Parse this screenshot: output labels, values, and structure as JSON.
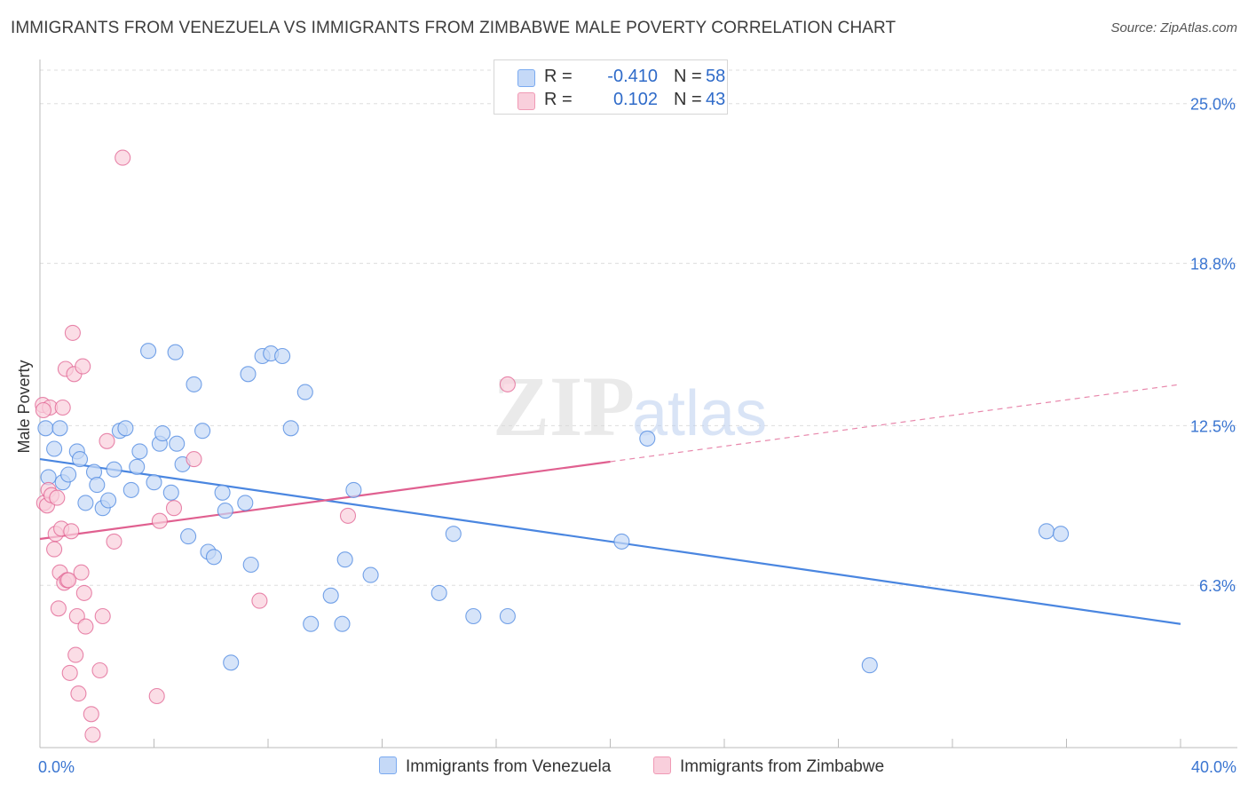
{
  "title": "IMMIGRANTS FROM VENEZUELA VS IMMIGRANTS FROM ZIMBABWE MALE POVERTY CORRELATION CHART",
  "source": "Source: ZipAtlas.com",
  "watermark": {
    "zip": "ZIP",
    "atlas": "atlas"
  },
  "legend": {
    "rows": [
      {
        "r_label": "R =",
        "r_value": "-0.410",
        "n_label": "N =",
        "n_value": "58",
        "color": "#7aaaf0",
        "fill": "#c5d9f7"
      },
      {
        "r_label": "R =",
        "r_value": "0.102",
        "n_label": "N =",
        "n_value": "43",
        "color": "#f09ab5",
        "fill": "#f9cfdc"
      }
    ]
  },
  "bottom_legend": [
    {
      "label": "Immigrants from Venezuela",
      "color": "#7aaaf0",
      "fill": "#c5d9f7"
    },
    {
      "label": "Immigrants from Zimbabwe",
      "color": "#f09ab5",
      "fill": "#f9cfdc"
    }
  ],
  "chart_data": {
    "type": "scatter",
    "title": "IMMIGRANTS FROM VENEZUELA VS IMMIGRANTS FROM ZIMBABWE MALE POVERTY CORRELATION CHART",
    "xlabel": "",
    "ylabel": "Male Poverty",
    "xlim": [
      0,
      40
    ],
    "ylim": [
      0,
      26.3
    ],
    "x_tick_labels": [
      {
        "value": 0,
        "label": "0.0%"
      },
      {
        "value": 40,
        "label": "40.0%"
      }
    ],
    "y_tick_labels": [
      {
        "value": 6.3,
        "label": "6.3%"
      },
      {
        "value": 12.5,
        "label": "12.5%"
      },
      {
        "value": 18.8,
        "label": "18.8%"
      },
      {
        "value": 25.0,
        "label": "25.0%"
      }
    ],
    "grid": "horizontal-dashed",
    "series": [
      {
        "name": "Immigrants from Venezuela",
        "color": "#4a86e0",
        "fill": "#c5d9f7",
        "trend": {
          "x0": 0,
          "y0": 11.2,
          "x1": 40,
          "y1": 4.8
        },
        "points": [
          [
            0.2,
            12.4
          ],
          [
            0.3,
            10.5
          ],
          [
            0.5,
            11.6
          ],
          [
            0.7,
            12.4
          ],
          [
            0.8,
            10.3
          ],
          [
            1.0,
            10.6
          ],
          [
            1.3,
            11.5
          ],
          [
            1.4,
            11.2
          ],
          [
            1.6,
            9.5
          ],
          [
            1.9,
            10.7
          ],
          [
            2.0,
            10.2
          ],
          [
            2.2,
            9.3
          ],
          [
            2.4,
            9.6
          ],
          [
            2.6,
            10.8
          ],
          [
            2.8,
            12.3
          ],
          [
            3.0,
            12.4
          ],
          [
            3.2,
            10.0
          ],
          [
            3.4,
            10.9
          ],
          [
            3.5,
            11.5
          ],
          [
            3.8,
            15.4
          ],
          [
            4.0,
            10.3
          ],
          [
            4.2,
            11.8
          ],
          [
            4.3,
            12.2
          ],
          [
            4.6,
            9.9
          ],
          [
            4.75,
            15.35
          ],
          [
            4.8,
            11.8
          ],
          [
            5.0,
            11.0
          ],
          [
            5.2,
            8.2
          ],
          [
            5.4,
            14.1
          ],
          [
            5.7,
            12.3
          ],
          [
            5.9,
            7.6
          ],
          [
            6.1,
            7.4
          ],
          [
            6.4,
            9.9
          ],
          [
            6.5,
            9.2
          ],
          [
            6.7,
            3.3
          ],
          [
            7.2,
            9.5
          ],
          [
            7.4,
            7.1
          ],
          [
            7.3,
            14.5
          ],
          [
            7.8,
            15.2
          ],
          [
            8.1,
            15.3
          ],
          [
            8.5,
            15.2
          ],
          [
            8.8,
            12.4
          ],
          [
            9.3,
            13.8
          ],
          [
            9.5,
            4.8
          ],
          [
            10.2,
            5.9
          ],
          [
            10.6,
            4.8
          ],
          [
            10.7,
            7.3
          ],
          [
            11.0,
            10.0
          ],
          [
            11.6,
            6.7
          ],
          [
            14.0,
            6.0
          ],
          [
            14.5,
            8.3
          ],
          [
            15.2,
            5.1
          ],
          [
            16.4,
            5.1
          ],
          [
            20.4,
            8.0
          ],
          [
            21.3,
            12.0
          ],
          [
            29.1,
            3.2
          ],
          [
            35.3,
            8.4
          ],
          [
            35.8,
            8.3
          ]
        ]
      },
      {
        "name": "Immigrants from Zimbabwe",
        "color": "#e06090",
        "fill": "#f9cfdc",
        "trend": {
          "x0": 0,
          "y0": 8.1,
          "x1": 20,
          "y1": 11.1
        },
        "trend_dashed": {
          "x0": 20,
          "y0": 11.1,
          "x1": 40,
          "y1": 14.1
        },
        "points": [
          [
            0.1,
            13.3
          ],
          [
            0.15,
            9.5
          ],
          [
            0.25,
            9.4
          ],
          [
            0.3,
            10.0
          ],
          [
            0.35,
            13.2
          ],
          [
            0.4,
            9.8
          ],
          [
            0.5,
            7.7
          ],
          [
            0.55,
            8.3
          ],
          [
            0.6,
            9.7
          ],
          [
            0.65,
            5.4
          ],
          [
            0.7,
            6.8
          ],
          [
            0.75,
            8.5
          ],
          [
            0.8,
            13.2
          ],
          [
            0.85,
            6.4
          ],
          [
            0.9,
            14.7
          ],
          [
            0.95,
            6.5
          ],
          [
            1.0,
            6.5
          ],
          [
            1.05,
            2.9
          ],
          [
            1.1,
            8.4
          ],
          [
            1.15,
            16.1
          ],
          [
            1.2,
            14.5
          ],
          [
            1.25,
            3.6
          ],
          [
            1.3,
            5.1
          ],
          [
            1.35,
            2.1
          ],
          [
            1.45,
            6.8
          ],
          [
            1.5,
            14.8
          ],
          [
            1.55,
            6.0
          ],
          [
            1.6,
            4.7
          ],
          [
            1.8,
            1.3
          ],
          [
            1.85,
            0.5
          ],
          [
            2.1,
            3.0
          ],
          [
            2.2,
            5.1
          ],
          [
            2.35,
            11.9
          ],
          [
            2.6,
            8.0
          ],
          [
            2.9,
            22.9
          ],
          [
            4.1,
            2.0
          ],
          [
            4.2,
            8.8
          ],
          [
            4.7,
            9.3
          ],
          [
            5.4,
            11.2
          ],
          [
            7.7,
            5.7
          ],
          [
            10.8,
            9.0
          ],
          [
            16.4,
            14.1
          ],
          [
            0.12,
            13.1
          ]
        ]
      }
    ]
  }
}
